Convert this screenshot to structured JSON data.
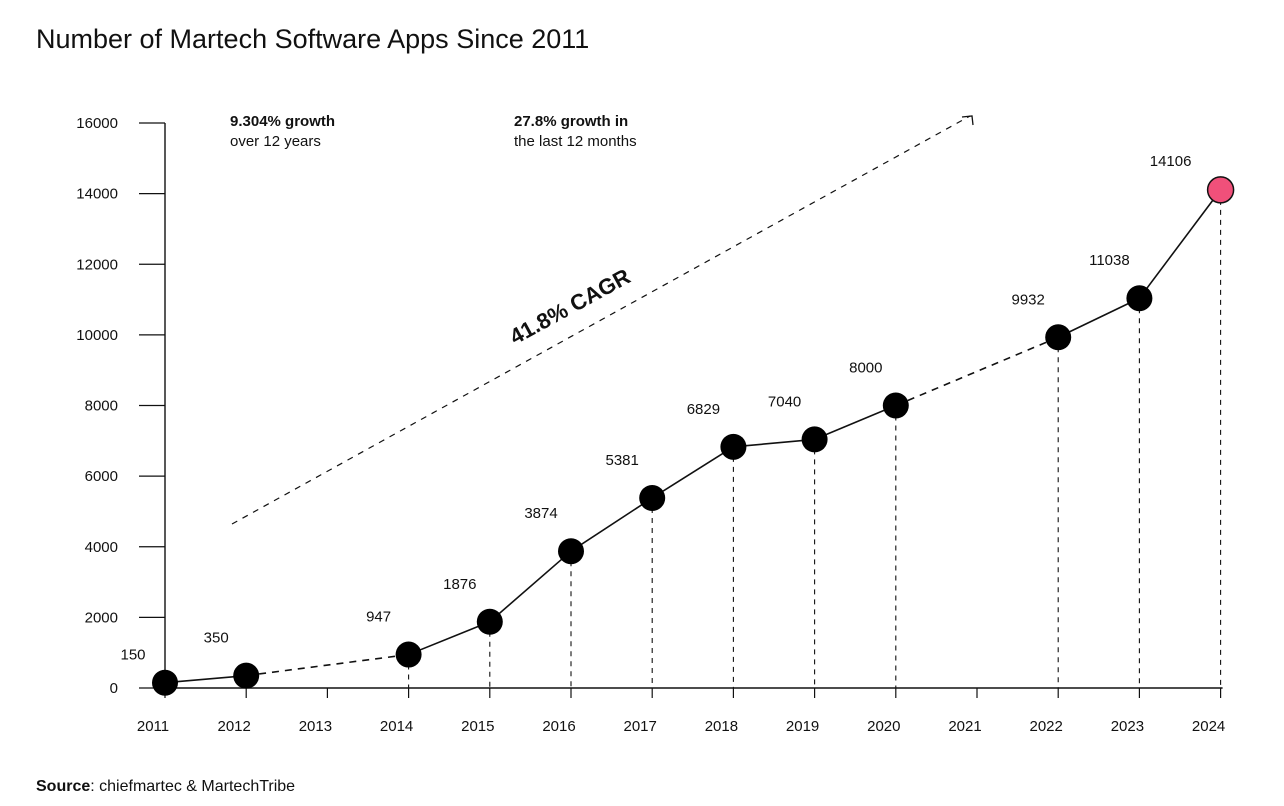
{
  "title": "Number of Martech Software Apps Since 2011",
  "source": {
    "label": "Source",
    "text": "chiefmartec & MartechTribe"
  },
  "annotations": {
    "growth_12y_bold": "9.304% growth",
    "growth_12y_rest": "over 12 years",
    "growth_12m_bold": "27.8% growth in",
    "growth_12m_rest": "the last 12 months",
    "cagr": "41.8% CAGR"
  },
  "colors": {
    "point": "#000000",
    "highlight": "#f0507a",
    "line": "#111111"
  },
  "chart_data": {
    "type": "line",
    "x_categories": [
      "2011",
      "2012",
      "2013",
      "2014",
      "2015",
      "2016",
      "2017",
      "2018",
      "2019",
      "2020",
      "2021",
      "2022",
      "2023",
      "2024"
    ],
    "y_ticks": [
      "0",
      "2000",
      "4000",
      "6000",
      "8000",
      "10000",
      "12000",
      "14000",
      "16000"
    ],
    "ylim": [
      0,
      16000
    ],
    "grid": false,
    "points": [
      {
        "x": "2011",
        "y": 150,
        "label": "150"
      },
      {
        "x": "2012",
        "y": 350,
        "label": "350"
      },
      {
        "x": "2014",
        "y": 947,
        "label": "947"
      },
      {
        "x": "2015",
        "y": 1876,
        "label": "1876"
      },
      {
        "x": "2016",
        "y": 3874,
        "label": "3874"
      },
      {
        "x": "2017",
        "y": 5381,
        "label": "5381"
      },
      {
        "x": "2018",
        "y": 6829,
        "label": "6829"
      },
      {
        "x": "2019",
        "y": 7040,
        "label": "7040"
      },
      {
        "x": "2020",
        "y": 8000,
        "label": "8000"
      },
      {
        "x": "2022",
        "y": 9932,
        "label": "9932"
      },
      {
        "x": "2023",
        "y": 11038,
        "label": "11038"
      },
      {
        "x": "2024",
        "y": 14106,
        "label": "14106",
        "highlight": true
      }
    ],
    "dashed_segments": [
      [
        "2012",
        "2014"
      ],
      [
        "2020",
        "2022"
      ]
    ]
  }
}
